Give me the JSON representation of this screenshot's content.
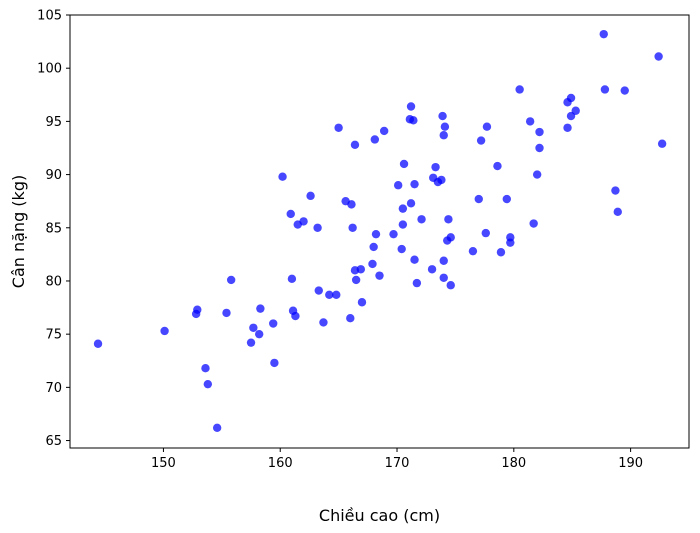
{
  "chart_data": {
    "type": "scatter",
    "title": "",
    "xlabel": "Chiều cao (cm)",
    "ylabel": "Cân nặng (kg)",
    "xlim": [
      142.0,
      195.0
    ],
    "ylim": [
      64.3,
      105.0
    ],
    "xticks": [
      150,
      160,
      170,
      180,
      190
    ],
    "yticks": [
      65,
      70,
      75,
      80,
      85,
      90,
      95,
      100,
      105
    ],
    "grid": false,
    "legend": "none",
    "color": "#0000ff",
    "opacity": 0.72,
    "points": [
      [
        144.4,
        74.1
      ],
      [
        150.1,
        75.3
      ],
      [
        152.8,
        76.9
      ],
      [
        152.9,
        77.3
      ],
      [
        153.6,
        71.8
      ],
      [
        153.8,
        70.3
      ],
      [
        154.6,
        66.2
      ],
      [
        155.4,
        77.0
      ],
      [
        155.8,
        80.1
      ],
      [
        157.5,
        74.2
      ],
      [
        157.7,
        75.6
      ],
      [
        158.2,
        75.0
      ],
      [
        158.3,
        77.4
      ],
      [
        159.4,
        76.0
      ],
      [
        159.5,
        72.3
      ],
      [
        160.2,
        89.8
      ],
      [
        160.9,
        86.3
      ],
      [
        161.0,
        80.2
      ],
      [
        161.1,
        77.2
      ],
      [
        161.3,
        76.7
      ],
      [
        161.5,
        85.3
      ],
      [
        162.0,
        85.6
      ],
      [
        162.6,
        88.0
      ],
      [
        163.2,
        85.0
      ],
      [
        163.3,
        79.1
      ],
      [
        163.7,
        76.1
      ],
      [
        164.2,
        78.7
      ],
      [
        164.8,
        78.7
      ],
      [
        165.0,
        94.4
      ],
      [
        165.6,
        87.5
      ],
      [
        166.0,
        76.5
      ],
      [
        166.1,
        87.2
      ],
      [
        166.2,
        85.0
      ],
      [
        166.4,
        92.8
      ],
      [
        166.4,
        81.0
      ],
      [
        166.5,
        80.1
      ],
      [
        166.9,
        81.1
      ],
      [
        167.0,
        78.0
      ],
      [
        167.9,
        81.6
      ],
      [
        168.0,
        83.2
      ],
      [
        168.1,
        93.3
      ],
      [
        168.2,
        84.4
      ],
      [
        168.5,
        80.5
      ],
      [
        168.9,
        94.1
      ],
      [
        169.7,
        84.4
      ],
      [
        170.1,
        89.0
      ],
      [
        170.4,
        83.0
      ],
      [
        170.5,
        86.8
      ],
      [
        170.5,
        85.3
      ],
      [
        170.6,
        91.0
      ],
      [
        171.1,
        95.2
      ],
      [
        171.2,
        96.4
      ],
      [
        171.2,
        87.3
      ],
      [
        171.4,
        95.1
      ],
      [
        171.5,
        89.1
      ],
      [
        171.5,
        82.0
      ],
      [
        171.7,
        79.8
      ],
      [
        172.1,
        85.8
      ],
      [
        173.0,
        81.1
      ],
      [
        173.1,
        89.7
      ],
      [
        173.3,
        90.7
      ],
      [
        173.5,
        89.3
      ],
      [
        173.8,
        89.5
      ],
      [
        173.9,
        95.5
      ],
      [
        174.0,
        93.7
      ],
      [
        174.0,
        80.3
      ],
      [
        174.0,
        81.9
      ],
      [
        174.1,
        94.5
      ],
      [
        174.3,
        83.8
      ],
      [
        174.4,
        85.8
      ],
      [
        174.6,
        84.1
      ],
      [
        174.6,
        79.6
      ],
      [
        176.5,
        82.8
      ],
      [
        177.0,
        87.7
      ],
      [
        177.2,
        93.2
      ],
      [
        177.6,
        84.5
      ],
      [
        177.7,
        94.5
      ],
      [
        178.6,
        90.8
      ],
      [
        178.9,
        82.7
      ],
      [
        179.4,
        87.7
      ],
      [
        179.7,
        84.1
      ],
      [
        179.7,
        83.6
      ],
      [
        180.5,
        98.0
      ],
      [
        181.4,
        95.0
      ],
      [
        181.7,
        85.4
      ],
      [
        182.0,
        90.0
      ],
      [
        182.2,
        94.0
      ],
      [
        182.2,
        92.5
      ],
      [
        184.6,
        96.8
      ],
      [
        184.6,
        94.4
      ],
      [
        184.9,
        95.5
      ],
      [
        184.9,
        97.2
      ],
      [
        185.3,
        96.0
      ],
      [
        187.7,
        103.2
      ],
      [
        187.8,
        98.0
      ],
      [
        188.7,
        88.5
      ],
      [
        188.9,
        86.5
      ],
      [
        189.5,
        97.9
      ],
      [
        192.4,
        101.1
      ],
      [
        192.7,
        92.9
      ]
    ]
  }
}
